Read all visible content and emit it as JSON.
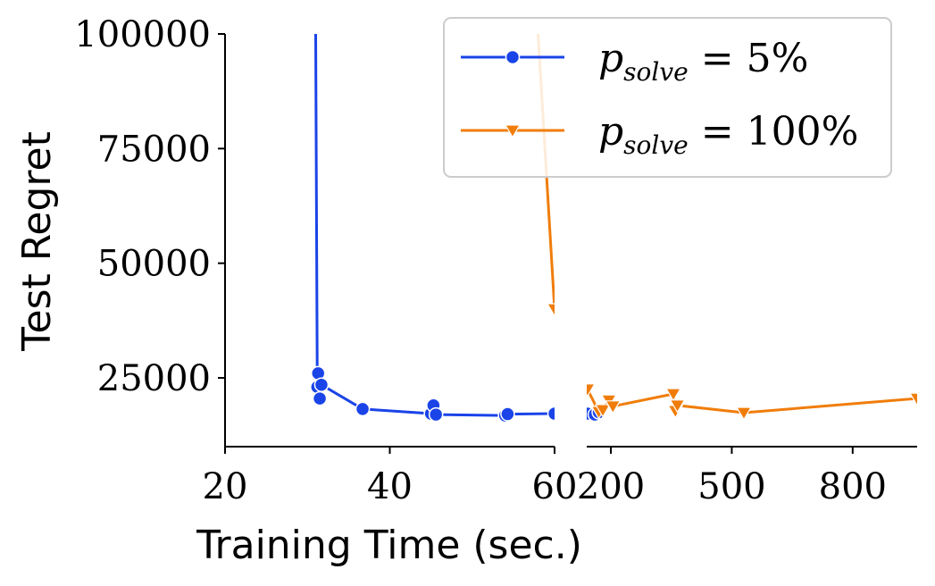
{
  "chart_data": {
    "type": "line",
    "ylabel": "Test Regret",
    "xlabel": "Training Time (sec.)",
    "y_ticks": [
      "100000",
      "75000",
      "50000",
      "25000"
    ],
    "y_tick_values": [
      100000,
      75000,
      50000,
      25000
    ],
    "ylim": [
      10000,
      100000
    ],
    "left_panel": {
      "xlim": [
        20,
        60
      ],
      "x_ticks": [
        "20",
        "40",
        "60"
      ],
      "x_tick_values": [
        20,
        40,
        60
      ]
    },
    "right_panel": {
      "xlim": [
        140,
        960
      ],
      "x_ticks": [
        "200",
        "500",
        "800"
      ],
      "x_tick_values": [
        200,
        500,
        800
      ]
    },
    "legend": {
      "position": "top-right"
    },
    "series": [
      {
        "name": "p_solve = 5%",
        "legend_main": "p",
        "legend_sub": "solve",
        "legend_rest": " = 5%",
        "color": "#1a44e8",
        "marker": "circle",
        "points": [
          [
            31.0,
            100000
          ],
          [
            31.2,
            23000
          ],
          [
            31.3,
            26000
          ],
          [
            31.5,
            20500
          ],
          [
            31.7,
            23500
          ],
          [
            36.7,
            18200
          ],
          [
            45.0,
            17200
          ],
          [
            45.3,
            19000
          ],
          [
            45.6,
            17000
          ],
          [
            54.0,
            16800
          ],
          [
            54.3,
            17100
          ],
          [
            60.0,
            17200
          ],
          [
            142,
            17200
          ],
          [
            160,
            17000
          ],
          [
            170,
            17500
          ]
        ]
      },
      {
        "name": "p_solve = 100%",
        "legend_main": "p",
        "legend_sub": "solve",
        "legend_rest": " = 100%",
        "color": "#f07d0a",
        "marker": "triangle-down",
        "points": [
          [
            58.0,
            100000
          ],
          [
            60.0,
            40000
          ],
          [
            142,
            22500
          ],
          [
            170,
            17600
          ],
          [
            180,
            18000
          ],
          [
            195,
            20100
          ],
          [
            205,
            18800
          ],
          [
            355,
            21500
          ],
          [
            360,
            17800
          ],
          [
            365,
            19000
          ],
          [
            530,
            17400
          ],
          [
            960,
            20500
          ]
        ]
      }
    ]
  }
}
